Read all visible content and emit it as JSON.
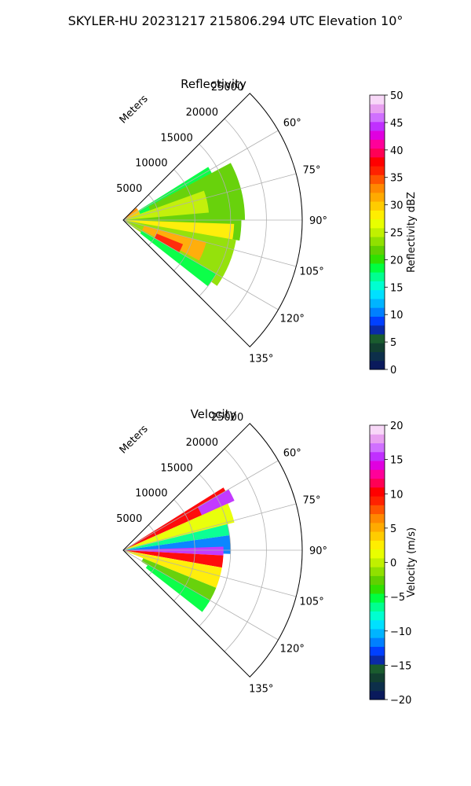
{
  "figure": {
    "suptitle": "SKYLER-HU  20231217  215806.294 UTC Elevation 10°"
  },
  "chart_data": [
    {
      "type": "ppi-sector",
      "title": "Reflectivity",
      "range_axis_label": "Meters",
      "range_ticks": [
        5000,
        10000,
        15000,
        20000,
        25000
      ],
      "range_tick_labels": [
        "5000",
        "10000",
        "15000",
        "20000",
        "25000"
      ],
      "azimuth_ticks": [
        60,
        75,
        90,
        105,
        120,
        135
      ],
      "azimuth_tick_labels": [
        "60°",
        "75°",
        "90°",
        "105°",
        "120°",
        "135°"
      ],
      "azimuth_range": [
        45,
        135
      ],
      "max_range": 25000,
      "grid": true,
      "colorbar": {
        "label": "Reflectivity dBZ",
        "min": 0,
        "max": 50,
        "ticks": [
          0,
          5,
          10,
          15,
          20,
          25,
          30,
          35,
          40,
          45,
          50
        ],
        "tick_labels": [
          "0",
          "5",
          "10",
          "15",
          "20",
          "25",
          "30",
          "35",
          "40",
          "45",
          "50"
        ],
        "colors": [
          "#0a1a5c",
          "#0d2f4a",
          "#123f30",
          "#1a5c2e",
          "#0a2aa8",
          "#0040ff",
          "#0080ff",
          "#00b4ff",
          "#00e0ff",
          "#00ffd0",
          "#00ff90",
          "#00ff40",
          "#30e000",
          "#60d000",
          "#90e000",
          "#c0f000",
          "#e8ff00",
          "#ffee00",
          "#ffcc00",
          "#ffaa00",
          "#ff8800",
          "#ff5500",
          "#ff2200",
          "#ff0000",
          "#ff0055",
          "#ff0099",
          "#e000e0",
          "#c030ff",
          "#d070ff",
          "#e8a0f0",
          "#f8d8f8"
        ]
      },
      "field": [
        {
          "az": [
            47,
            55
          ],
          "r": [
            0,
            2500
          ],
          "value": 33
        },
        {
          "az": [
            55,
            125
          ],
          "r": [
            0,
            2500
          ],
          "value": 30
        },
        {
          "az": [
            58,
            70
          ],
          "r": [
            2500,
            14000
          ],
          "value": 19
        },
        {
          "az": [
            62,
            90
          ],
          "r": [
            4000,
            17000
          ],
          "value": 22
        },
        {
          "az": [
            70,
            88
          ],
          "r": [
            0,
            12000
          ],
          "value": 25
        },
        {
          "az": [
            85,
            100
          ],
          "r": [
            0,
            16500
          ],
          "value": 21
        },
        {
          "az": [
            92,
            105
          ],
          "r": [
            0,
            15500
          ],
          "value": 28
        },
        {
          "az": [
            100,
            125
          ],
          "r": [
            0,
            16000
          ],
          "value": 23
        },
        {
          "az": [
            105,
            118
          ],
          "r": [
            3000,
            12000
          ],
          "value": 32
        },
        {
          "az": [
            112,
            122
          ],
          "r": [
            5000,
            9000
          ],
          "value": 37
        },
        {
          "az": [
            120,
            128
          ],
          "r": [
            3000,
            15000
          ],
          "value": 18
        }
      ]
    },
    {
      "type": "ppi-sector",
      "title": "Velocity",
      "range_axis_label": "Meters",
      "range_ticks": [
        5000,
        10000,
        15000,
        20000,
        25000
      ],
      "range_tick_labels": [
        "5000",
        "10000",
        "15000",
        "20000",
        "25000"
      ],
      "azimuth_ticks": [
        60,
        75,
        90,
        105,
        120,
        135
      ],
      "azimuth_tick_labels": [
        "60°",
        "75°",
        "90°",
        "105°",
        "120°",
        "135°"
      ],
      "azimuth_range": [
        45,
        135
      ],
      "max_range": 25000,
      "grid": true,
      "colorbar": {
        "label": "Velocity (m/s)",
        "min": -20,
        "max": 20,
        "ticks": [
          -20,
          -15,
          -10,
          -5,
          0,
          5,
          10,
          15,
          20
        ],
        "tick_labels": [
          "−20",
          "−15",
          "−10",
          "−5",
          "0",
          "5",
          "10",
          "15",
          "20"
        ],
        "colors": [
          "#0a1a5c",
          "#0d2f4a",
          "#123f30",
          "#1a5c2e",
          "#0a2aa8",
          "#0040ff",
          "#0080ff",
          "#00b4ff",
          "#00e0ff",
          "#00ffd0",
          "#00ff90",
          "#00ff40",
          "#30e000",
          "#60d000",
          "#90e000",
          "#c0f000",
          "#e8ff00",
          "#ffee00",
          "#ffcc00",
          "#ffaa00",
          "#ff8800",
          "#ff5500",
          "#ff2200",
          "#ff0000",
          "#ff0055",
          "#ff0099",
          "#e000e0",
          "#c030ff",
          "#d070ff",
          "#e8a0f0",
          "#f8d8f8"
        ]
      },
      "field": [
        {
          "az": [
            58,
            66
          ],
          "r": [
            0,
            16500
          ],
          "value": 10
        },
        {
          "az": [
            60,
            66
          ],
          "r": [
            12000,
            17000
          ],
          "value": 15
        },
        {
          "az": [
            66,
            76
          ],
          "r": [
            0,
            16000
          ],
          "value": 1
        },
        {
          "az": [
            76,
            82
          ],
          "r": [
            0,
            15000
          ],
          "value": -6
        },
        {
          "az": [
            82,
            92
          ],
          "r": [
            0,
            15000
          ],
          "value": -11
        },
        {
          "az": [
            88,
            93
          ],
          "r": [
            0,
            14000
          ],
          "value": 15
        },
        {
          "az": [
            93,
            100
          ],
          "r": [
            0,
            14000
          ],
          "value": 10
        },
        {
          "az": [
            100,
            112
          ],
          "r": [
            0,
            14000
          ],
          "value": 2
        },
        {
          "az": [
            112,
            122
          ],
          "r": [
            3000,
            14000
          ],
          "value": -3
        },
        {
          "az": [
            120,
            128
          ],
          "r": [
            4000,
            14000
          ],
          "value": -5
        }
      ]
    }
  ]
}
